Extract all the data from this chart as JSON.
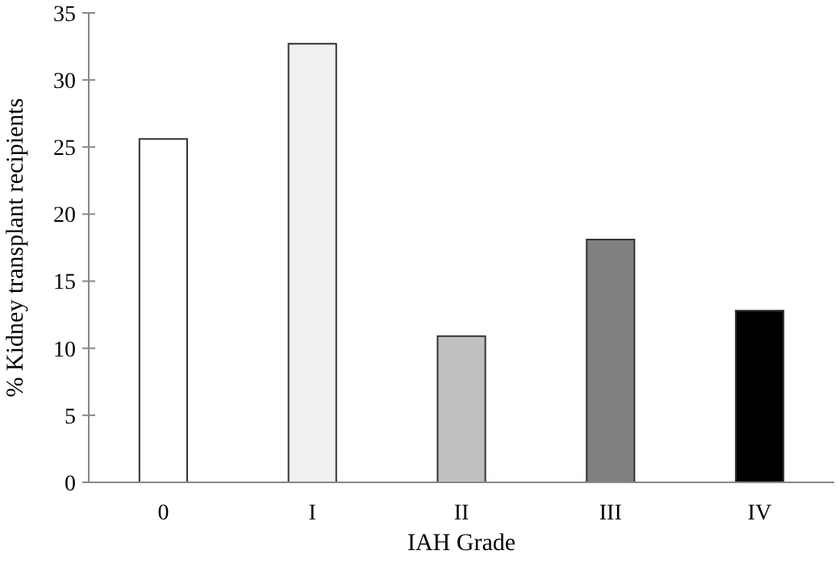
{
  "chart_data": {
    "type": "bar",
    "xlabel": "IAH Grade",
    "ylabel": "% Kidney transplant recipients",
    "categories": [
      "0",
      "I",
      "II",
      "III",
      "IV"
    ],
    "values": [
      25.6,
      32.7,
      10.9,
      18.1,
      12.8
    ],
    "colors": [
      "#ffffff",
      "#f0f0f0",
      "#c0c0c0",
      "#808080",
      "#000000"
    ],
    "ylim": [
      0,
      35
    ],
    "yticks": [
      0,
      5,
      10,
      15,
      20,
      25,
      30,
      35
    ],
    "grid": false
  }
}
